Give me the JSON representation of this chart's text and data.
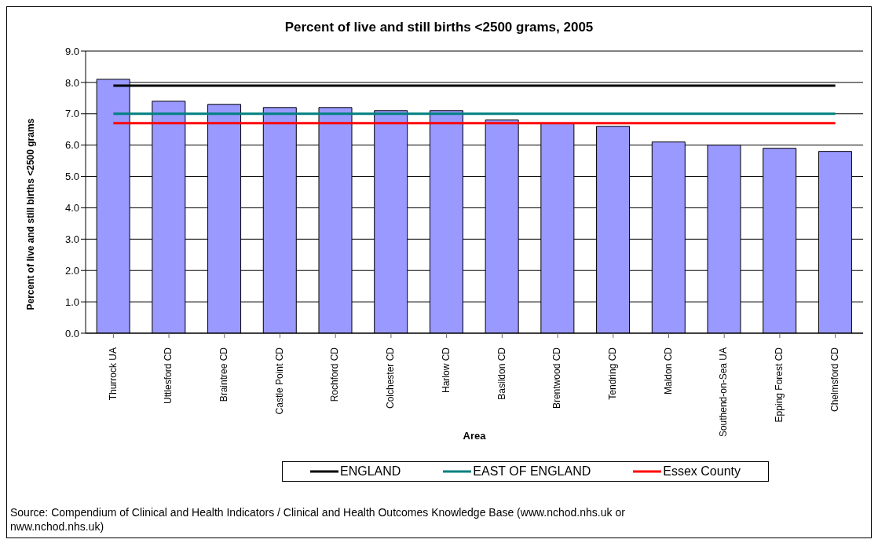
{
  "chart_data": {
    "type": "bar",
    "title": "Percent of live and still births <2500 grams, 2005",
    "xlabel": "Area",
    "ylabel": "Percent of live and still births <2500 grams",
    "categories": [
      "Thurrock UA",
      "Uttlesford CD",
      "Braintree CD",
      "Castle Point CD",
      "Rochford CD",
      "Colchester CD",
      "Harlow CD",
      "Basildon CD",
      "Brentwood CD",
      "Tendring CD",
      "Maldon CD",
      "Southend-on-Sea UA",
      "Epping Forest CD",
      "Chelmsford CD"
    ],
    "series": [
      {
        "color": "#9999ff",
        "values": [
          8.1,
          7.4,
          7.3,
          7.2,
          7.2,
          7.1,
          7.1,
          6.8,
          6.7,
          6.6,
          6.1,
          6.0,
          5.9,
          5.8
        ]
      },
      {
        "type": "line",
        "name": "ENGLAND",
        "color": "#000000",
        "values": [
          7.9,
          7.9,
          7.9,
          7.9,
          7.9,
          7.9,
          7.9,
          7.9,
          7.9,
          7.9,
          7.9,
          7.9,
          7.9,
          7.9
        ]
      },
      {
        "type": "line",
        "name": "EAST OF ENGLAND",
        "color": "#008080",
        "values": [
          7.0,
          7.0,
          7.0,
          7.0,
          7.0,
          7.0,
          7.0,
          7.0,
          7.0,
          7.0,
          7.0,
          7.0,
          7.0,
          7.0
        ]
      },
      {
        "type": "line",
        "name": "Essex County",
        "color": "#ff0000",
        "values": [
          6.7,
          6.7,
          6.7,
          6.7,
          6.7,
          6.7,
          6.7,
          6.7,
          6.7,
          6.7,
          6.7,
          6.7,
          6.7,
          6.7
        ]
      }
    ],
    "ylim": [
      0,
      9
    ],
    "yticks": [
      {
        "value": 0,
        "label": "0.0"
      },
      {
        "value": 1,
        "label": "1.0"
      },
      {
        "value": 2,
        "label": "2.0"
      },
      {
        "value": 3,
        "label": "3.0"
      },
      {
        "value": 4,
        "label": "4.0"
      },
      {
        "value": 5,
        "label": "5.0"
      },
      {
        "value": 6,
        "label": "6.0"
      },
      {
        "value": 7,
        "label": "7.0"
      },
      {
        "value": 8,
        "label": "8.0"
      },
      {
        "value": 9,
        "label": "9.0"
      }
    ],
    "grid": "y",
    "legend": "bottom",
    "marker": "none",
    "annotations": [
      "Source: Compendium of Clinical and Health Indicators / Clinical and Health Outcomes Knowledge Base (www.nchod.nhs.uk or nww.nchod.nhs.uk)"
    ]
  }
}
